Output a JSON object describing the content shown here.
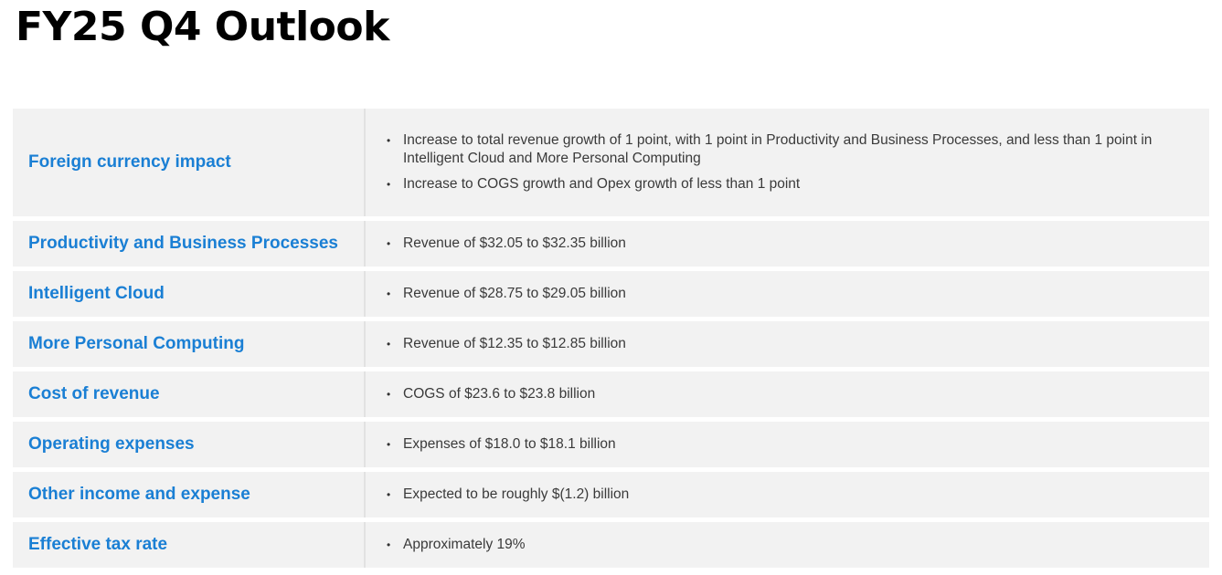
{
  "page": {
    "title": "FY25 Q4 Outlook"
  },
  "colors": {
    "label_blue": "#1a7fd4",
    "row_background": "#f2f2f2",
    "text": "#3a3a3a"
  },
  "rows": [
    {
      "label": "Foreign currency impact",
      "bullets": [
        "Increase to total revenue growth of 1 point, with 1 point in Productivity and Business Processes, and less than 1 point in Intelligent Cloud and More Personal Computing",
        "Increase to COGS growth and Opex growth of less than 1 point"
      ]
    },
    {
      "label": "Productivity and Business Processes",
      "bullets": [
        "Revenue of $32.05 to $32.35 billion"
      ]
    },
    {
      "label": "Intelligent Cloud",
      "bullets": [
        "Revenue of $28.75 to $29.05 billion"
      ]
    },
    {
      "label": "More Personal Computing",
      "bullets": [
        "Revenue of $12.35 to $12.85 billion"
      ]
    },
    {
      "label": "Cost of revenue",
      "bullets": [
        "COGS of $23.6 to $23.8 billion"
      ]
    },
    {
      "label": "Operating expenses",
      "bullets": [
        "Expenses of $18.0 to $18.1 billion"
      ]
    },
    {
      "label": "Other income and expense",
      "bullets": [
        "Expected to be roughly $(1.2) billion"
      ]
    },
    {
      "label": "Effective tax rate",
      "bullets": [
        "Approximately 19%"
      ]
    }
  ],
  "bullet_glyph": "•"
}
